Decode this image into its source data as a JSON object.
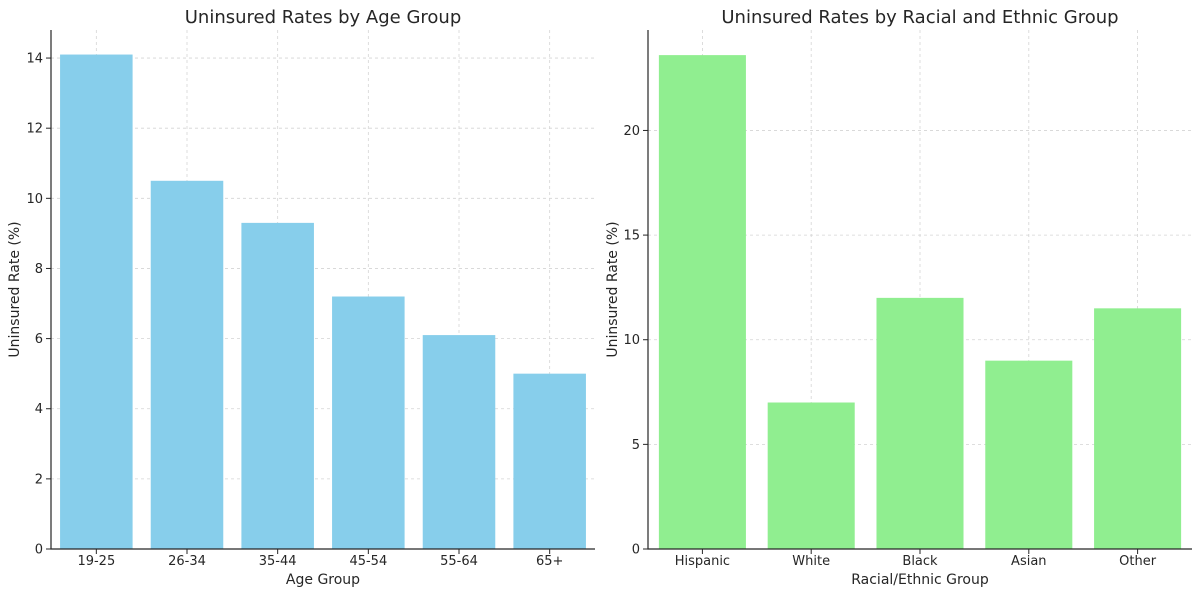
{
  "chart_data": [
    {
      "type": "bar",
      "title": "Uninsured Rates by Age Group",
      "xlabel": "Age Group",
      "ylabel": "Uninsured Rate (%)",
      "categories": [
        "19-25",
        "26-34",
        "35-44",
        "45-54",
        "55-64",
        "65+"
      ],
      "values": [
        14.1,
        10.5,
        9.3,
        7.2,
        6.1,
        5.0
      ],
      "ylim": [
        0,
        14.8
      ],
      "yticks": [
        0,
        2,
        4,
        6,
        8,
        10,
        12,
        14
      ],
      "color": "#87CEEB",
      "grid": true
    },
    {
      "type": "bar",
      "title": "Uninsured Rates by Racial and Ethnic Group",
      "xlabel": "Racial/Ethnic Group",
      "ylabel": "Uninsured Rate (%)",
      "categories": [
        "Hispanic",
        "White",
        "Black",
        "Asian",
        "Other"
      ],
      "values": [
        23.6,
        7.0,
        12.0,
        9.0,
        11.5
      ],
      "ylim": [
        0,
        24.8
      ],
      "yticks": [
        0,
        5,
        10,
        15,
        20
      ],
      "color": "#90EE90",
      "grid": true
    }
  ]
}
